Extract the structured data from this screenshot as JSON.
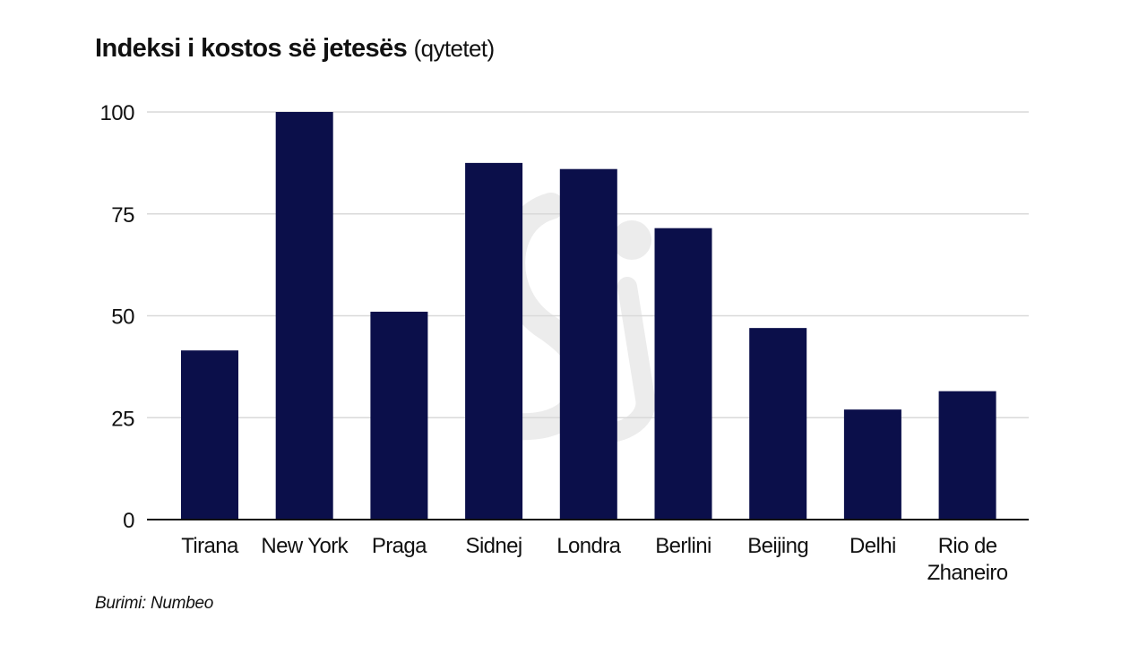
{
  "title": {
    "main": "Indeksi i kostos së jetesës",
    "sub": "(qytetet)"
  },
  "source": "Burimi: Numbeo",
  "colors": {
    "bar": "#0b0f4a",
    "grid": "#d9d9d9",
    "axis": "#111111",
    "watermark": "#ededed"
  },
  "chart_data": {
    "type": "bar",
    "title": "Indeksi i kostos së jetesës (qytetet)",
    "categories": [
      "Tirana",
      "New York",
      "Praga",
      "Sidnej",
      "Londra",
      "Berlini",
      "Beijing",
      "Delhi",
      "Rio de Zhaneiro"
    ],
    "values": [
      41.5,
      100,
      51,
      87.5,
      86,
      71.5,
      47,
      27,
      31.5
    ],
    "ylim": [
      0,
      100
    ],
    "yticks": [
      0,
      25,
      50,
      75,
      100
    ],
    "xlabel": "",
    "ylabel": "",
    "grid": true,
    "legend": "none"
  }
}
